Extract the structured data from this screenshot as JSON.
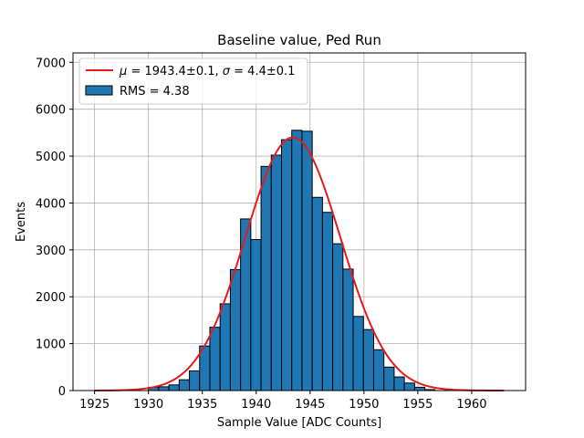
{
  "chart_data": {
    "type": "bar",
    "title": "Baseline value, Ped Run",
    "xlabel": "Sample Value [ADC Counts]",
    "ylabel": "Events",
    "xlim": [
      1923,
      1965
    ],
    "ylim": [
      0,
      7200
    ],
    "x_ticks": [
      "1925",
      "1930",
      "1935",
      "1940",
      "1945",
      "1950",
      "1955",
      "1960"
    ],
    "x_tick_values": [
      1925,
      1930,
      1935,
      1940,
      1945,
      1950,
      1955,
      1960
    ],
    "y_ticks": [
      "0",
      "1000",
      "2000",
      "3000",
      "4000",
      "5000",
      "6000",
      "7000"
    ],
    "y_tick_values": [
      0,
      1000,
      2000,
      3000,
      4000,
      5000,
      6000,
      7000
    ],
    "grid": true,
    "legend_position": "top-left",
    "histogram": {
      "name": "RMS = 4.38",
      "bin_left_edges": [
        1930.0,
        1930.95,
        1931.9,
        1932.85,
        1933.8,
        1934.75,
        1935.7,
        1936.65,
        1937.6,
        1938.55,
        1939.5,
        1940.45,
        1941.4,
        1942.35,
        1943.3,
        1944.25,
        1945.2,
        1946.15,
        1947.1,
        1948.05,
        1949.0,
        1949.95,
        1950.9,
        1951.85,
        1952.8,
        1953.75,
        1954.7,
        1955.65
      ],
      "bin_width": 0.95,
      "values": [
        70,
        80,
        120,
        230,
        420,
        950,
        1350,
        1850,
        2580,
        3660,
        3220,
        4780,
        5020,
        5350,
        5550,
        5530,
        4120,
        3800,
        3130,
        2590,
        1580,
        1300,
        870,
        500,
        290,
        160,
        70,
        20
      ],
      "color": "#1f77b4"
    },
    "fit": {
      "name": "μ = 1943.4±0.1, σ = 4.4±0.1",
      "mu_label": "μ",
      "mu_text": " = 1943.4±0.1, ",
      "sigma_label": "σ",
      "sigma_text": " = 4.4±0.1",
      "mu": 1943.4,
      "sigma": 4.4,
      "amplitude": 5400,
      "x_range": [
        1925,
        1963
      ],
      "color": "#e41a1c"
    },
    "legend": {
      "hist_label": "RMS = 4.38"
    }
  }
}
